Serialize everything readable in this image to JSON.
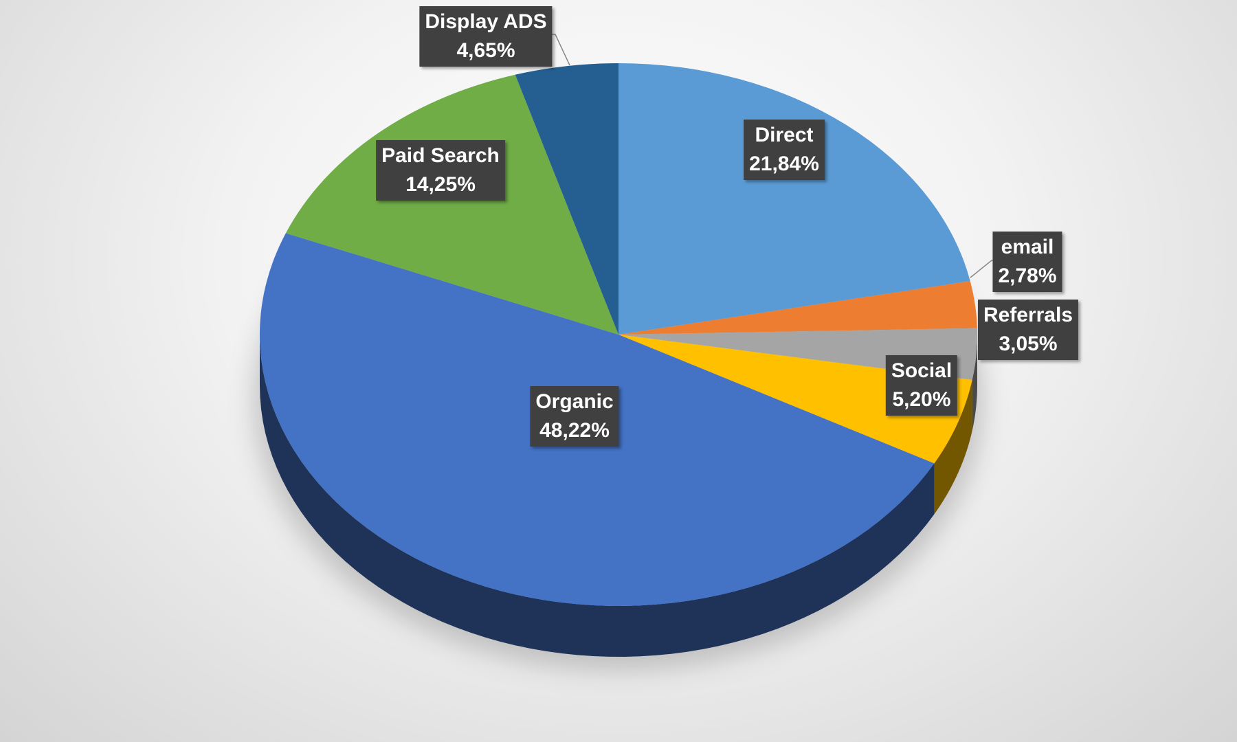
{
  "chart_data": {
    "type": "pie",
    "style": "3d",
    "start": "12 o'clock, clockwise",
    "slices": [
      {
        "label": "Direct",
        "value": 21.84,
        "text": "21,84%",
        "color": "#5B9BD5"
      },
      {
        "label": "email",
        "value": 2.78,
        "text": "2,78%",
        "color": "#ED7D31"
      },
      {
        "label": "Referrals",
        "value": 3.05,
        "text": "3,05%",
        "color": "#A5A5A5"
      },
      {
        "label": "Social",
        "value": 5.2,
        "text": "5,20%",
        "color": "#FFC000"
      },
      {
        "label": "Organic",
        "value": 48.22,
        "text": "48,22%",
        "color": "#4472C4"
      },
      {
        "label": "Paid Search",
        "value": 14.25,
        "text": "14,25%",
        "color": "#70AD47"
      },
      {
        "label": "Display ADS",
        "value": 4.65,
        "text": "4,65%",
        "color": "#255E91"
      }
    ],
    "legend": "none",
    "data_labels": "category name and percentage"
  }
}
